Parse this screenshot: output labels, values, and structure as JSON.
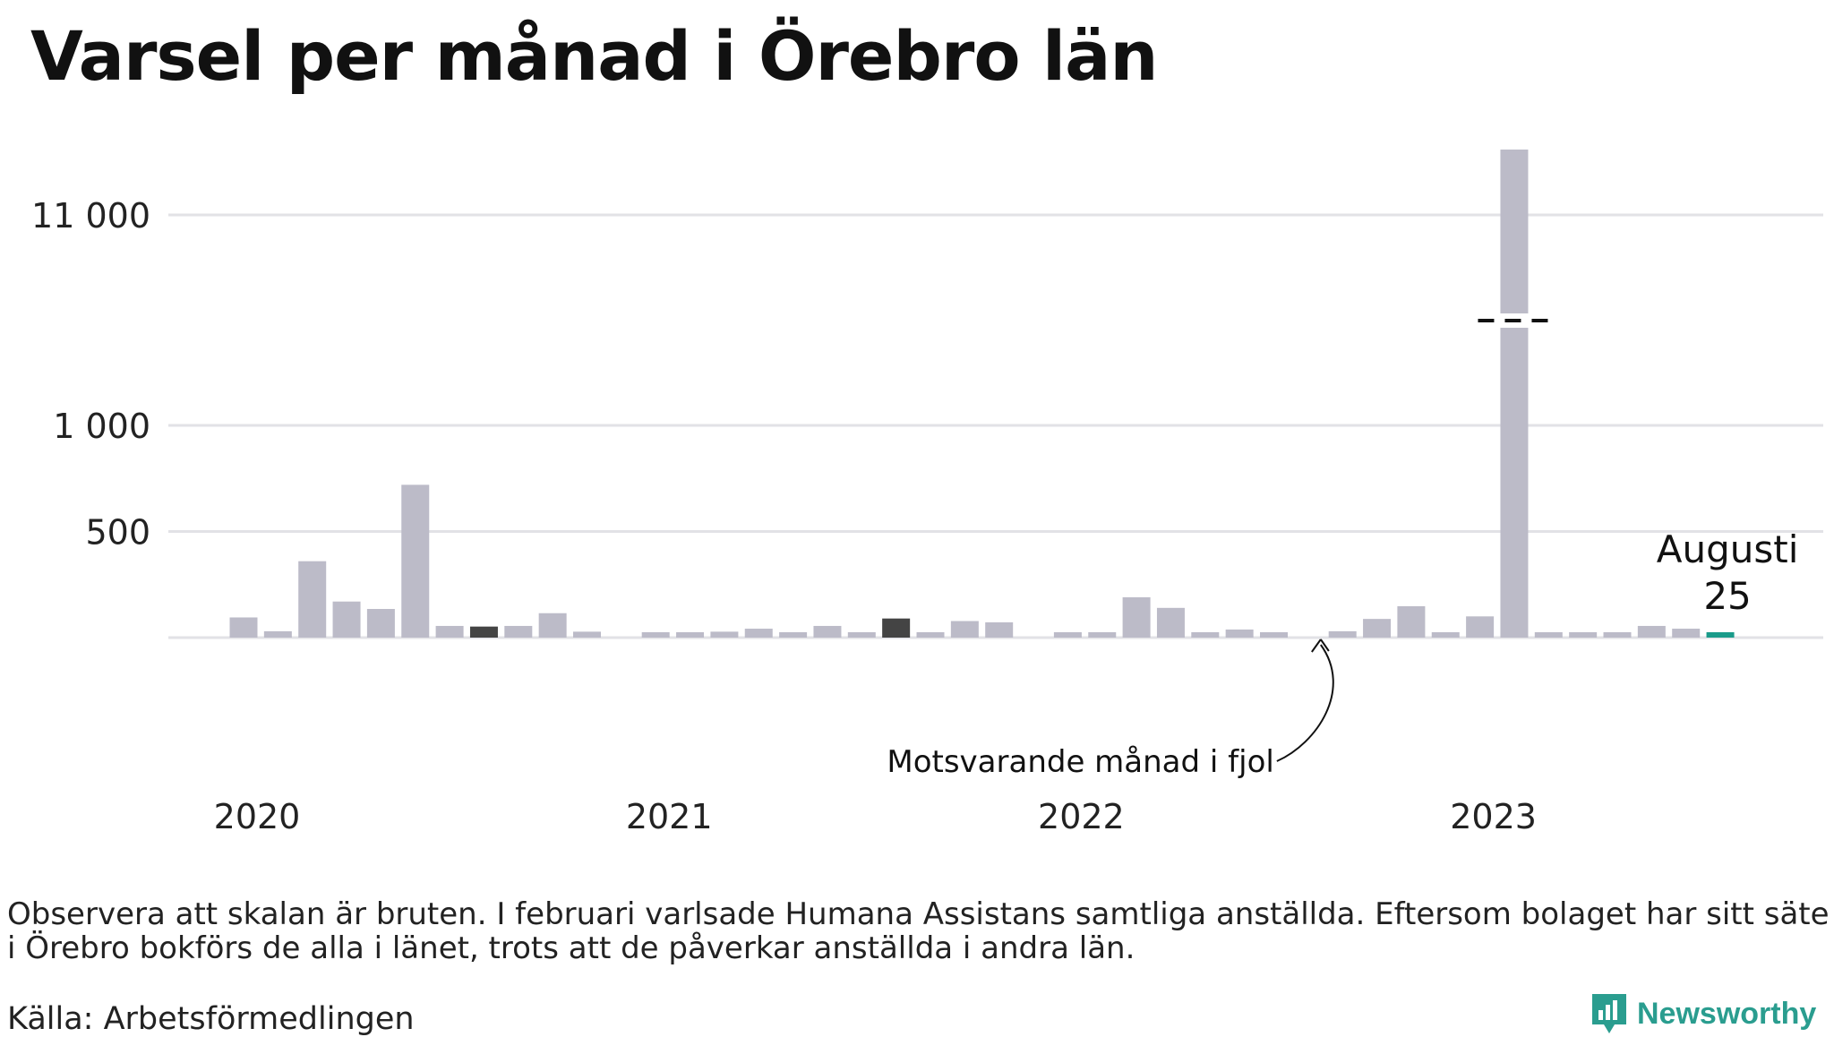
{
  "title": "Varsel per månad i Örebro län",
  "note": "Observera att skalan är bruten. I februari varlsade Humana Assistans samtliga anställda. Eftersom bolaget har sitt säte i Örebro bokförs de alla i länet, trots att de påverkar anställda i andra län.",
  "source": "Källa: Arbetsförmedlingen",
  "brand": "Newsworthy",
  "chart_data": {
    "type": "bar",
    "title": "Varsel per månad i Örebro län",
    "y_scale": "broken",
    "yticks": [
      {
        "value": 0,
        "label": ""
      },
      {
        "value": 500,
        "label": "500"
      },
      {
        "value": 1000,
        "label": "1 000"
      },
      {
        "value": 11000,
        "label": "11 000"
      }
    ],
    "year_labels": [
      "2020",
      "2021",
      "2022",
      "2023"
    ],
    "categories": [
      "2020-01",
      "2020-02",
      "2020-03",
      "2020-04",
      "2020-05",
      "2020-06",
      "2020-07",
      "2020-08",
      "2020-09",
      "2020-10",
      "2020-11",
      "2020-12",
      "2021-01",
      "2021-02",
      "2021-03",
      "2021-04",
      "2021-05",
      "2021-06",
      "2021-07",
      "2021-08",
      "2021-09",
      "2021-10",
      "2021-11",
      "2021-12",
      "2022-01",
      "2022-02",
      "2022-03",
      "2022-04",
      "2022-05",
      "2022-06",
      "2022-07",
      "2022-08",
      "2022-09",
      "2022-10",
      "2022-11",
      "2022-12",
      "2023-01",
      "2023-02",
      "2023-03",
      "2023-04",
      "2023-05",
      "2023-06",
      "2023-07",
      "2023-08"
    ],
    "values": [
      95,
      30,
      360,
      170,
      135,
      720,
      55,
      52,
      55,
      115,
      28,
      0,
      10,
      15,
      28,
      42,
      22,
      55,
      18,
      90,
      5,
      78,
      72,
      0,
      20,
      10,
      190,
      140,
      15,
      38,
      22,
      0,
      30,
      88,
      148,
      20,
      100,
      12000,
      25,
      20,
      12,
      55,
      42,
      25
    ],
    "highlight": {
      "same_month_previous_years": [
        "2020-08",
        "2021-08",
        "2022-08"
      ],
      "current": "2023-08"
    },
    "colors": {
      "bar": "#bcbbc8",
      "previous_years_bar": "#444444",
      "current_bar": "#1a9b8a",
      "grid": "#e2e2e6"
    },
    "annotations": {
      "current_month": "Augusti",
      "current_value": "25",
      "previous_year": "Motsvarande månad i fjol"
    }
  }
}
